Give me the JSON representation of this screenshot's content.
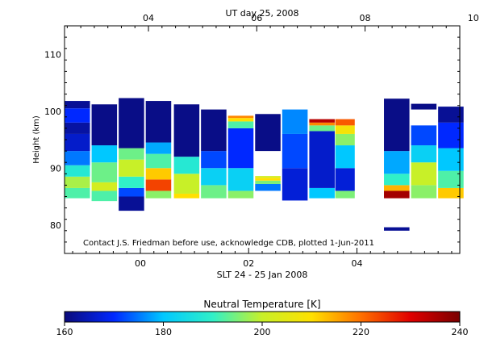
{
  "chart_data": {
    "type": "heatmap",
    "top_title": "UT day 25, 2008",
    "ylabel": "Height (km)",
    "xlabel": "SLT 24 - 25 Jan 2008",
    "annotation": "Contact J.S. Friedman before use, acknowledge CDB, plotted 1-Jun-2011",
    "ylim": [
      75,
      115
    ],
    "yticks": [
      80,
      90,
      100,
      110
    ],
    "x_range_hours": [
      22.6,
      29.9
    ],
    "bottom_ticks": [
      {
        "hour": 24,
        "label": "00"
      },
      {
        "hour": 26,
        "label": "02"
      },
      {
        "hour": 28,
        "label": "04"
      }
    ],
    "top_ticks": [
      {
        "hour": 24.15,
        "label": "04"
      },
      {
        "hour": 26.15,
        "label": "06"
      },
      {
        "hour": 28.15,
        "label": "08"
      },
      {
        "hour": 30.15,
        "label": "10"
      }
    ],
    "colorbar": {
      "title": "Neutral Temperature [K]",
      "min": 160,
      "max": 240,
      "ticks": [
        160,
        180,
        200,
        220,
        240
      ],
      "colors": [
        "#0a0a7a",
        "#0028ff",
        "#00c8ff",
        "#30f0c8",
        "#c8f028",
        "#ffe000",
        "#ff7000",
        "#e00000",
        "#7a0000"
      ]
    },
    "columns": [
      {
        "x0": 22.6,
        "x1": 23.07,
        "segs": [
          [
            84.7,
            86.5,
            192
          ],
          [
            86.5,
            88.5,
            198
          ],
          [
            88.5,
            90.5,
            188
          ],
          [
            90.5,
            93,
            175
          ],
          [
            93,
            96,
            166
          ],
          [
            96,
            98,
            163
          ],
          [
            98,
            100.5,
            170
          ],
          [
            100.5,
            101.8,
            162
          ]
        ]
      },
      {
        "x0": 23.1,
        "x1": 23.57,
        "segs": [
          [
            84.2,
            86,
            192
          ],
          [
            86,
            87.5,
            202
          ],
          [
            87.5,
            91,
            194
          ],
          [
            91,
            94,
            180
          ],
          [
            94,
            101.2,
            161
          ]
        ]
      },
      {
        "x0": 23.6,
        "x1": 24.07,
        "segs": [
          [
            82.5,
            85,
            162
          ],
          [
            85,
            86.5,
            172
          ],
          [
            86.5,
            88.5,
            190
          ],
          [
            88.5,
            91.5,
            200
          ],
          [
            91.5,
            93.5,
            194
          ],
          [
            93.5,
            102.3,
            161
          ]
        ]
      },
      {
        "x0": 24.1,
        "x1": 24.57,
        "segs": [
          [
            84.7,
            86,
            196
          ],
          [
            86,
            88,
            224
          ],
          [
            88,
            90,
            212
          ],
          [
            90,
            92.5,
            192
          ],
          [
            92.5,
            94.5,
            178
          ],
          [
            94.5,
            101.8,
            161
          ]
        ]
      },
      {
        "x0": 24.62,
        "x1": 25.09,
        "segs": [
          [
            84.7,
            85.5,
            210
          ],
          [
            85.5,
            89,
            200
          ],
          [
            89,
            92,
            188
          ],
          [
            92,
            101.2,
            161
          ]
        ]
      },
      {
        "x0": 25.12,
        "x1": 25.59,
        "segs": [
          [
            84.7,
            87,
            194
          ],
          [
            87,
            90,
            182
          ],
          [
            90,
            93,
            172
          ],
          [
            93,
            100.3,
            161
          ]
        ]
      },
      {
        "x0": 25.62,
        "x1": 26.09,
        "segs": [
          [
            84.7,
            86,
            196
          ],
          [
            86,
            90,
            182
          ],
          [
            90,
            97,
            170
          ],
          [
            97,
            98.2,
            192
          ],
          [
            98.2,
            98.8,
            210
          ],
          [
            98.8,
            99.2,
            218
          ]
        ]
      },
      {
        "x0": 26.12,
        "x1": 26.59,
        "segs": [
          [
            86,
            87.2,
            175
          ],
          [
            87.2,
            87.8,
            195
          ],
          [
            87.8,
            88.3,
            210
          ],
          [
            88.3,
            88.6,
            202
          ],
          [
            93,
            99.5,
            161
          ]
        ]
      },
      {
        "x0": 26.62,
        "x1": 27.09,
        "segs": [
          [
            84.3,
            90,
            167
          ],
          [
            90,
            96,
            172
          ],
          [
            96,
            100.3,
            176
          ]
        ]
      },
      {
        "x0": 27.12,
        "x1": 27.59,
        "segs": [
          [
            84.7,
            86.5,
            180
          ],
          [
            86.5,
            96.5,
            166
          ],
          [
            96.5,
            97.5,
            194
          ],
          [
            97.5,
            98,
            218
          ],
          [
            98,
            98.6,
            234
          ]
        ]
      },
      {
        "x0": 27.6,
        "x1": 27.96,
        "segs": [
          [
            84.7,
            86,
            195
          ],
          [
            86,
            90,
            167
          ],
          [
            90,
            94,
            180
          ],
          [
            94,
            96,
            196
          ],
          [
            96,
            97.5,
            208
          ],
          [
            97.5,
            98.6,
            222
          ]
        ]
      },
      {
        "x0": 28.5,
        "x1": 28.97,
        "segs": [
          [
            79,
            79.6,
            162
          ],
          [
            84.7,
            86,
            236
          ],
          [
            86,
            87,
            214
          ],
          [
            87,
            89,
            190
          ],
          [
            89,
            93,
            178
          ],
          [
            93,
            102.2,
            161
          ]
        ]
      },
      {
        "x0": 29.0,
        "x1": 29.47,
        "segs": [
          [
            84.7,
            87,
            196
          ],
          [
            87,
            91,
            200
          ],
          [
            91,
            94,
            182
          ],
          [
            94,
            97.5,
            172
          ],
          [
            100.3,
            101.3,
            161
          ]
        ]
      },
      {
        "x0": 29.5,
        "x1": 29.97,
        "segs": [
          [
            84.7,
            86.5,
            212
          ],
          [
            86.5,
            89.5,
            192
          ],
          [
            89.5,
            93.5,
            180
          ],
          [
            93.5,
            98,
            170
          ],
          [
            98,
            100.8,
            162
          ]
        ]
      }
    ]
  }
}
